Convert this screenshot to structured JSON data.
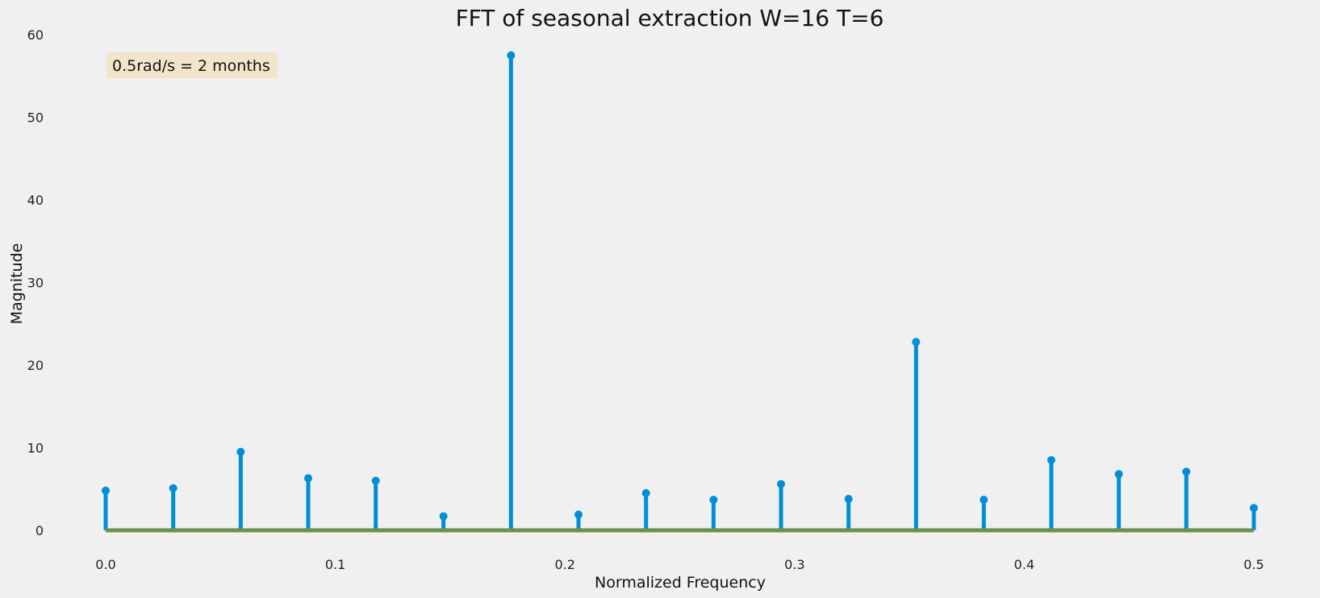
{
  "chart_data": {
    "type": "stem",
    "title": "FFT of seasonal extraction W=16 T=6",
    "xlabel": "Normalized Frequency",
    "ylabel": "Magnitude",
    "xlim": [
      0.0,
      0.5
    ],
    "ylim": [
      0,
      60
    ],
    "xticks": [
      0.0,
      0.1,
      0.2,
      0.3,
      0.4,
      0.5
    ],
    "xtick_labels": [
      "0.0",
      "0.1",
      "0.2",
      "0.3",
      "0.4",
      "0.5"
    ],
    "yticks": [
      0,
      10,
      20,
      30,
      40,
      50,
      60
    ],
    "ytick_labels": [
      "0",
      "10",
      "20",
      "30",
      "40",
      "50",
      "60"
    ],
    "grid": false,
    "annotation": "0.5rad/s = 2 months",
    "x": [
      0.0,
      0.0294,
      0.0588,
      0.0882,
      0.1176,
      0.1471,
      0.1765,
      0.2059,
      0.2353,
      0.2647,
      0.2941,
      0.3235,
      0.3529,
      0.3824,
      0.4118,
      0.4412,
      0.4706,
      0.5
    ],
    "values": [
      4.8,
      5.1,
      9.5,
      6.3,
      6.0,
      1.7,
      57.5,
      1.9,
      4.5,
      3.7,
      5.6,
      3.8,
      22.8,
      3.7,
      8.5,
      6.8,
      7.1,
      2.7
    ],
    "stem_color": "#008fd5",
    "baseline_color": "#6d904f"
  }
}
